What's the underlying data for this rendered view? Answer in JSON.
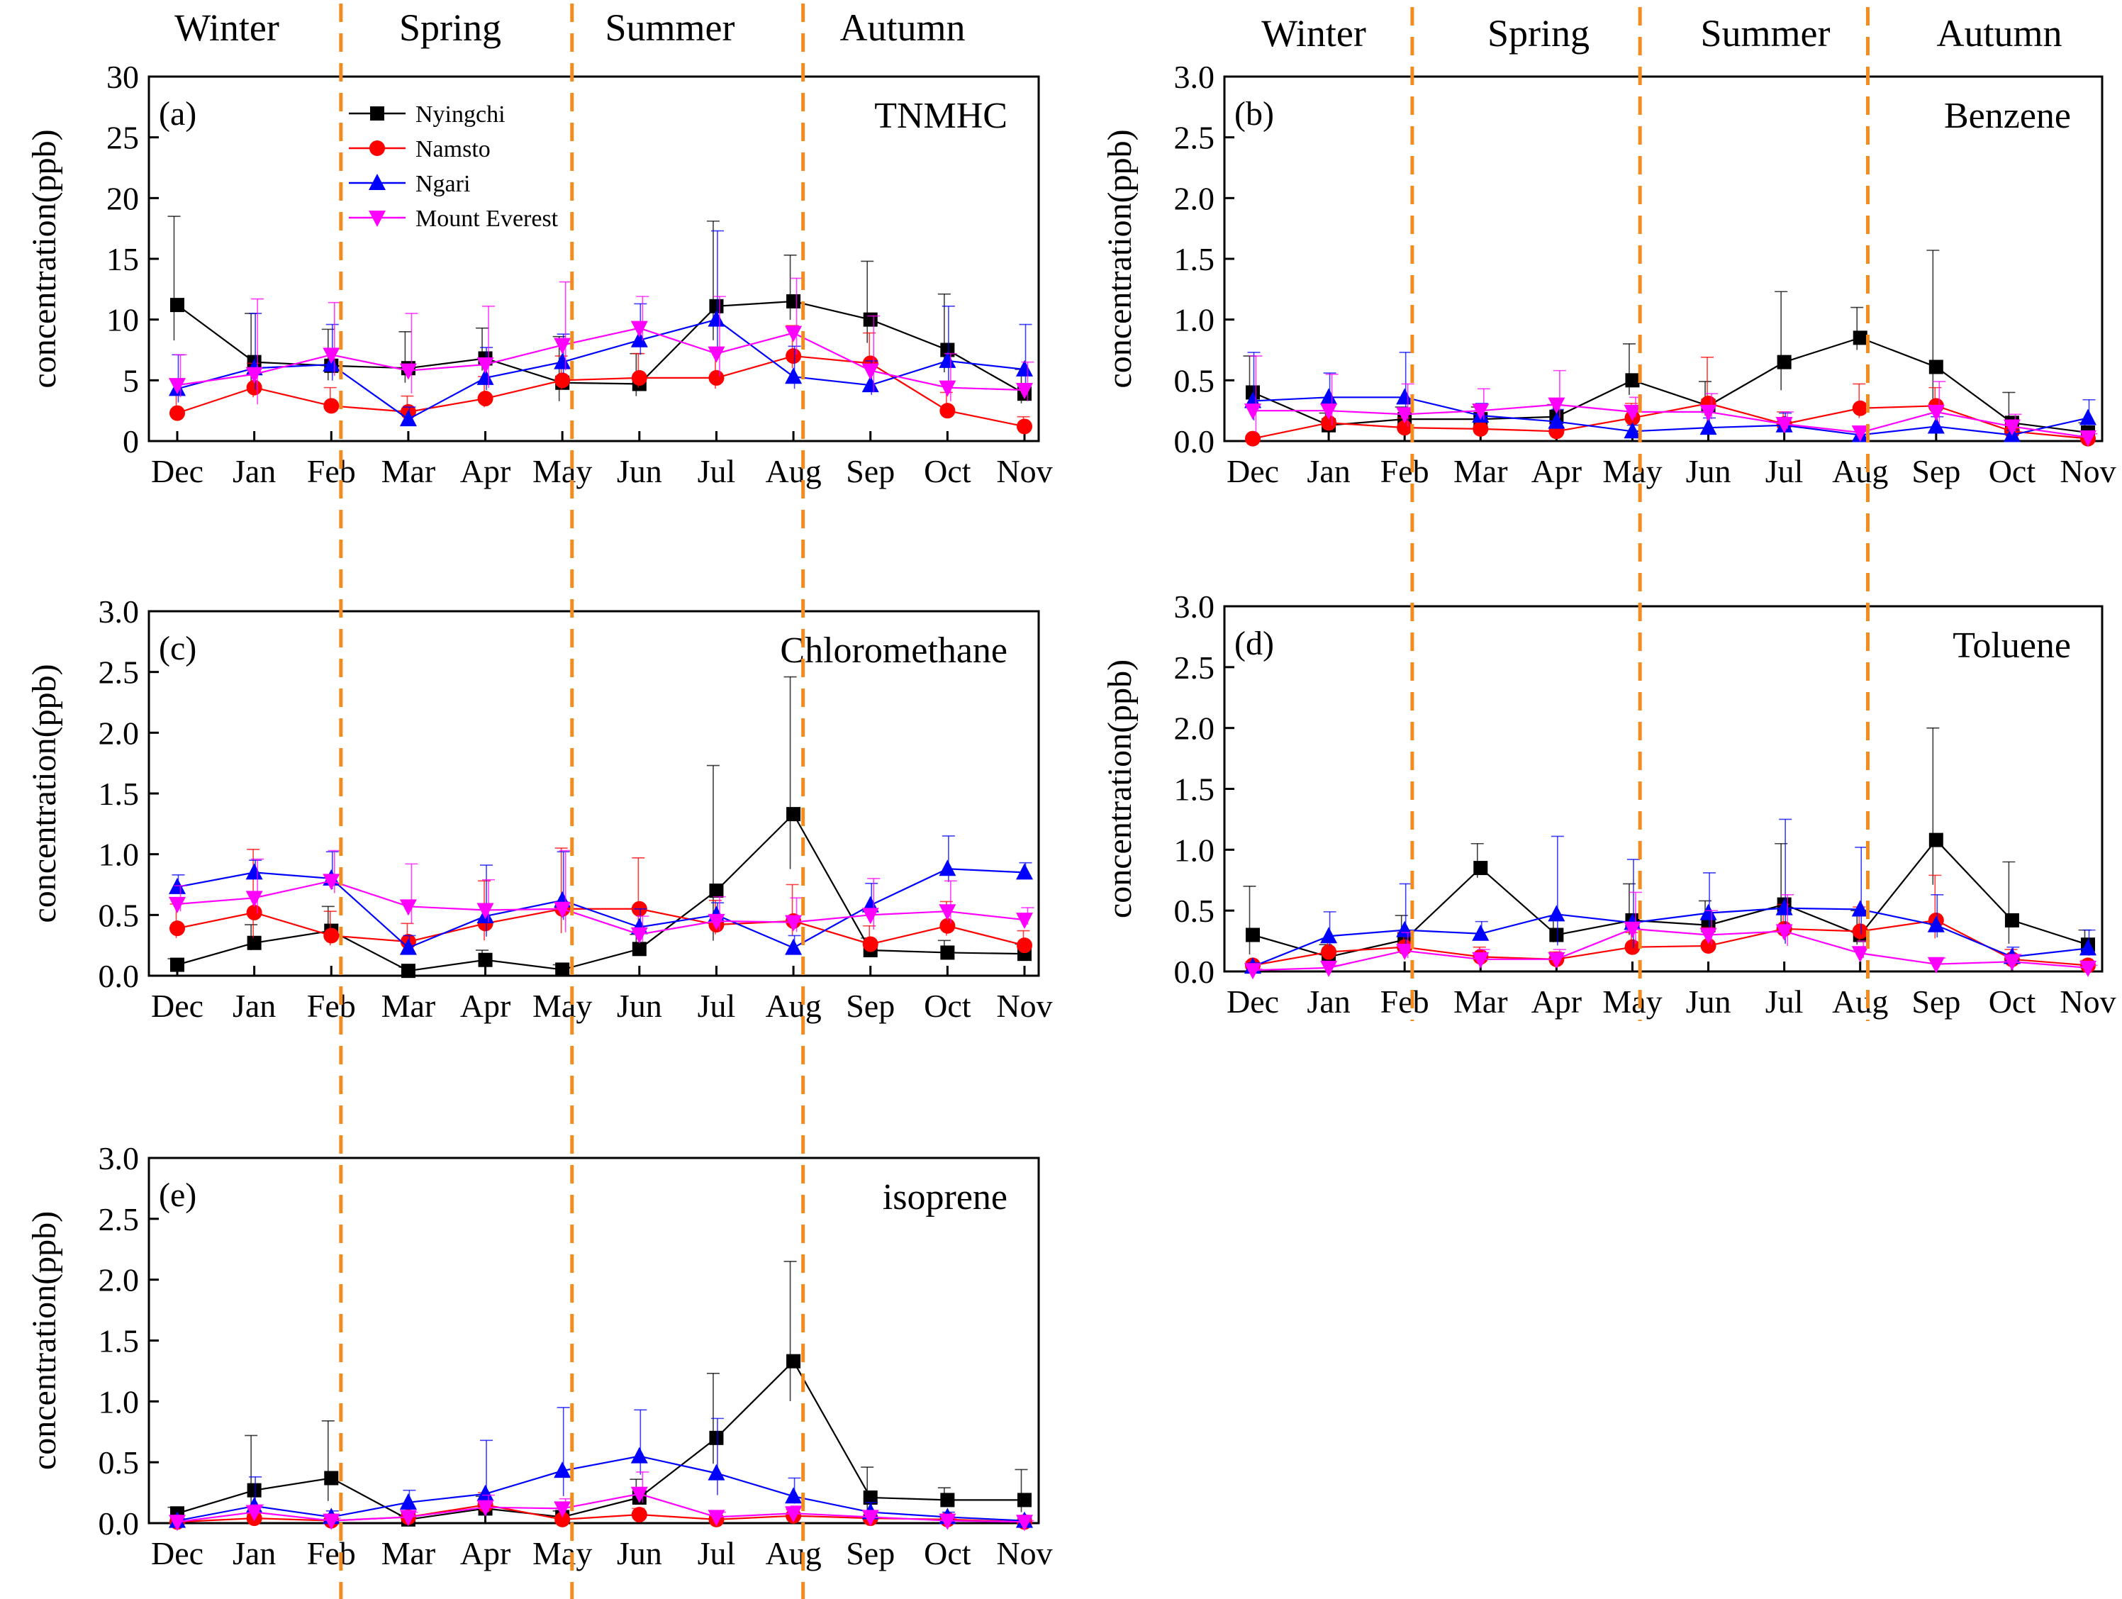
{
  "chart_data": {
    "type": "line",
    "ylabel": "concentration(ppb)",
    "seasons": [
      "Winter",
      "Spring",
      "Summer",
      "Autumn"
    ],
    "months": [
      "Dec",
      "Jan",
      "Feb",
      "Mar",
      "Apr",
      "May",
      "Jun",
      "Jul",
      "Aug",
      "Sep",
      "Oct",
      "Nov"
    ],
    "season_boundaries": [
      "Feb",
      "May",
      "Aug"
    ],
    "legend": {
      "placement": "top-left of panel (a)",
      "entries": [
        {
          "name": "Nyingchi",
          "color": "#000000",
          "marker": "square"
        },
        {
          "name": "Namsto",
          "color": "#ff0000",
          "marker": "circle"
        },
        {
          "name": "Ngari",
          "color": "#0000ff",
          "marker": "triangle-up"
        },
        {
          "name": "Mount Everest",
          "color": "#ff00ff",
          "marker": "triangle-down"
        }
      ]
    },
    "boundary_color": "#f28c1e",
    "panels": [
      {
        "tag": "(a)",
        "compound": "TNMHC",
        "ylim": [
          0,
          30
        ],
        "yticks": [
          "0",
          "5",
          "10",
          "15",
          "20",
          "25",
          "30"
        ],
        "series": [
          {
            "name": "Nyingchi",
            "values": [
              11.2,
              6.5,
              6.2,
              6.0,
              6.8,
              4.8,
              4.7,
              11.1,
              11.5,
              10.0,
              7.5,
              3.9
            ],
            "errors": [
              7.3,
              4.0,
              3.0,
              3.0,
              2.5,
              3.8,
              2.5,
              7.0,
              3.8,
              4.8,
              4.6,
              2.0
            ]
          },
          {
            "name": "Namsto",
            "values": [
              2.3,
              4.4,
              2.9,
              2.4,
              3.5,
              5.0,
              5.2,
              5.2,
              7.0,
              6.4,
              2.5,
              1.2
            ],
            "errors": [
              1.5,
              2.0,
              1.5,
              1.3,
              1.8,
              2.0,
              2.0,
              2.2,
              2.5,
              2.5,
              1.5,
              0.8
            ]
          },
          {
            "name": "Ngari",
            "values": [
              4.3,
              6.0,
              6.3,
              1.8,
              5.2,
              6.5,
              8.3,
              10.0,
              5.3,
              4.6,
              6.6,
              5.9
            ],
            "errors": [
              2.8,
              4.5,
              3.3,
              1.0,
              2.5,
              2.3,
              3.0,
              7.3,
              2.5,
              2.0,
              4.5,
              3.7
            ]
          },
          {
            "name": "Mount Everest",
            "values": [
              4.6,
              5.5,
              7.1,
              5.8,
              6.3,
              7.9,
              9.3,
              7.2,
              8.9,
              5.8,
              4.4,
              4.2
            ],
            "errors": [
              2.5,
              6.2,
              4.3,
              4.7,
              4.8,
              5.2,
              2.6,
              4.7,
              4.5,
              4.5,
              2.8,
              2.3
            ]
          }
        ]
      },
      {
        "tag": "(b)",
        "compound": "Benzene",
        "ylim": [
          0,
          3.0
        ],
        "yticks": [
          "0.0",
          "0.5",
          "1.0",
          "1.5",
          "2.0",
          "2.5",
          "3.0"
        ],
        "series": [
          {
            "name": "Nyingchi",
            "values": [
              0.4,
              0.13,
              0.18,
              0.18,
              0.2,
              0.5,
              0.29,
              0.65,
              0.85,
              0.61,
              0.15,
              0.07
            ],
            "errors": [
              0.3,
              0.1,
              0.1,
              0.1,
              0.1,
              0.3,
              0.2,
              0.58,
              0.25,
              0.96,
              0.25,
              0.08
            ]
          },
          {
            "name": "Namsto",
            "values": [
              0.02,
              0.15,
              0.11,
              0.1,
              0.08,
              0.19,
              0.31,
              0.14,
              0.27,
              0.29,
              0.08,
              0.02
            ],
            "errors": [
              0.02,
              0.1,
              0.08,
              0.08,
              0.06,
              0.12,
              0.38,
              0.1,
              0.2,
              0.15,
              0.06,
              0.02
            ]
          },
          {
            "name": "Ngari",
            "values": [
              0.33,
              0.36,
              0.36,
              0.21,
              0.16,
              0.08,
              0.11,
              0.13,
              0.05,
              0.12,
              0.05,
              0.19
            ],
            "errors": [
              0.4,
              0.2,
              0.37,
              0.1,
              0.1,
              0.05,
              0.08,
              0.1,
              0.04,
              0.08,
              0.04,
              0.15
            ]
          },
          {
            "name": "Mount Everest",
            "values": [
              0.25,
              0.25,
              0.22,
              0.25,
              0.3,
              0.24,
              0.24,
              0.14,
              0.07,
              0.24,
              0.12,
              0.03
            ],
            "errors": [
              0.45,
              0.3,
              0.25,
              0.18,
              0.28,
              0.12,
              0.15,
              0.1,
              0.05,
              0.25,
              0.1,
              0.03
            ]
          }
        ]
      },
      {
        "tag": "(c)",
        "compound": "Chloromethane",
        "ylim": [
          0,
          3.0
        ],
        "yticks": [
          "0.0",
          "0.5",
          "1.0",
          "1.5",
          "2.0",
          "2.5",
          "3.0"
        ],
        "series": [
          {
            "name": "Nyingchi",
            "values": [
              0.09,
              0.27,
              0.37,
              0.04,
              0.13,
              0.05,
              0.22,
              0.7,
              1.33,
              0.21,
              0.19,
              0.18
            ],
            "errors": [
              0.05,
              0.15,
              0.2,
              0.03,
              0.08,
              0.04,
              0.12,
              1.03,
              1.13,
              0.1,
              0.1,
              0.08
            ]
          },
          {
            "name": "Namsto",
            "values": [
              0.39,
              0.52,
              0.33,
              0.28,
              0.43,
              0.55,
              0.55,
              0.42,
              0.45,
              0.26,
              0.41,
              0.25
            ],
            "errors": [
              0.2,
              0.52,
              0.2,
              0.15,
              0.35,
              0.5,
              0.42,
              0.2,
              0.3,
              0.15,
              0.2,
              0.12
            ]
          },
          {
            "name": "Ngari",
            "values": [
              0.73,
              0.85,
              0.8,
              0.23,
              0.49,
              0.62,
              0.4,
              0.5,
              0.23,
              0.58,
              0.88,
              0.85
            ],
            "errors": [
              0.1,
              0.1,
              0.22,
              0.1,
              0.42,
              0.4,
              0.15,
              0.1,
              0.1,
              0.18,
              0.27,
              0.08
            ]
          },
          {
            "name": "Mount Everest",
            "values": [
              0.59,
              0.64,
              0.78,
              0.57,
              0.54,
              0.55,
              0.34,
              0.45,
              0.44,
              0.5,
              0.53,
              0.46
            ],
            "errors": [
              0.15,
              0.32,
              0.25,
              0.35,
              0.25,
              0.48,
              0.15,
              0.2,
              0.2,
              0.3,
              0.25,
              0.1
            ]
          }
        ]
      },
      {
        "tag": "(d)",
        "compound": "Toluene",
        "ylim": [
          0,
          3.0
        ],
        "yticks": [
          "0.0",
          "0.5",
          "1.0",
          "1.5",
          "2.0",
          "2.5",
          "3.0"
        ],
        "series": [
          {
            "name": "Nyingchi",
            "values": [
              0.3,
              0.12,
              0.26,
              0.85,
              0.3,
              0.42,
              0.38,
              0.55,
              0.3,
              1.08,
              0.42,
              0.22
            ],
            "errors": [
              0.4,
              0.1,
              0.2,
              0.2,
              0.15,
              0.3,
              0.2,
              0.5,
              0.2,
              0.92,
              0.48,
              0.12
            ]
          },
          {
            "name": "Namsto",
            "values": [
              0.05,
              0.16,
              0.2,
              0.12,
              0.1,
              0.2,
              0.21,
              0.35,
              0.33,
              0.42,
              0.1,
              0.05
            ],
            "errors": [
              0.03,
              0.1,
              0.12,
              0.08,
              0.06,
              0.12,
              0.15,
              0.2,
              0.2,
              0.37,
              0.08,
              0.04
            ]
          },
          {
            "name": "Ngari",
            "values": [
              0.04,
              0.29,
              0.34,
              0.31,
              0.47,
              0.4,
              0.48,
              0.52,
              0.51,
              0.38,
              0.12,
              0.19
            ],
            "errors": [
              0.03,
              0.2,
              0.38,
              0.1,
              0.64,
              0.52,
              0.33,
              0.73,
              0.51,
              0.25,
              0.08,
              0.15
            ]
          },
          {
            "name": "Mount Everest",
            "values": [
              0.01,
              0.03,
              0.17,
              0.1,
              0.1,
              0.35,
              0.3,
              0.33,
              0.15,
              0.06,
              0.08,
              0.03
            ],
            "errors": [
              0.01,
              0.02,
              0.15,
              0.08,
              0.08,
              0.3,
              0.2,
              0.3,
              0.1,
              0.05,
              0.06,
              0.02
            ]
          }
        ]
      },
      {
        "tag": "(e)",
        "compound": "isoprene",
        "ylim": [
          0,
          3.0
        ],
        "yticks": [
          "0.0",
          "0.5",
          "1.0",
          "1.5",
          "2.0",
          "2.5",
          "3.0"
        ],
        "series": [
          {
            "name": "Nyingchi",
            "values": [
              0.08,
              0.27,
              0.37,
              0.03,
              0.12,
              0.05,
              0.21,
              0.7,
              1.33,
              0.21,
              0.19,
              0.19
            ],
            "errors": [
              0.05,
              0.45,
              0.47,
              0.03,
              0.1,
              0.05,
              0.15,
              0.53,
              0.82,
              0.25,
              0.1,
              0.25
            ]
          },
          {
            "name": "Namsto",
            "values": [
              0.01,
              0.04,
              0.02,
              0.05,
              0.15,
              0.03,
              0.07,
              0.03,
              0.06,
              0.04,
              0.03,
              0.01
            ],
            "errors": [
              0.01,
              0.03,
              0.02,
              0.04,
              0.1,
              0.03,
              0.05,
              0.03,
              0.05,
              0.03,
              0.03,
              0.01
            ]
          },
          {
            "name": "Ngari",
            "values": [
              0.02,
              0.14,
              0.05,
              0.17,
              0.24,
              0.43,
              0.55,
              0.41,
              0.22,
              0.09,
              0.05,
              0.02
            ],
            "errors": [
              0.02,
              0.24,
              0.05,
              0.1,
              0.44,
              0.52,
              0.38,
              0.45,
              0.15,
              0.08,
              0.04,
              0.02
            ]
          },
          {
            "name": "Mount Everest",
            "values": [
              0.01,
              0.09,
              0.02,
              0.05,
              0.13,
              0.12,
              0.24,
              0.05,
              0.08,
              0.05,
              0.02,
              0.01
            ],
            "errors": [
              0.01,
              0.06,
              0.02,
              0.04,
              0.1,
              0.08,
              0.18,
              0.04,
              0.06,
              0.04,
              0.02,
              0.01
            ]
          }
        ]
      }
    ]
  }
}
